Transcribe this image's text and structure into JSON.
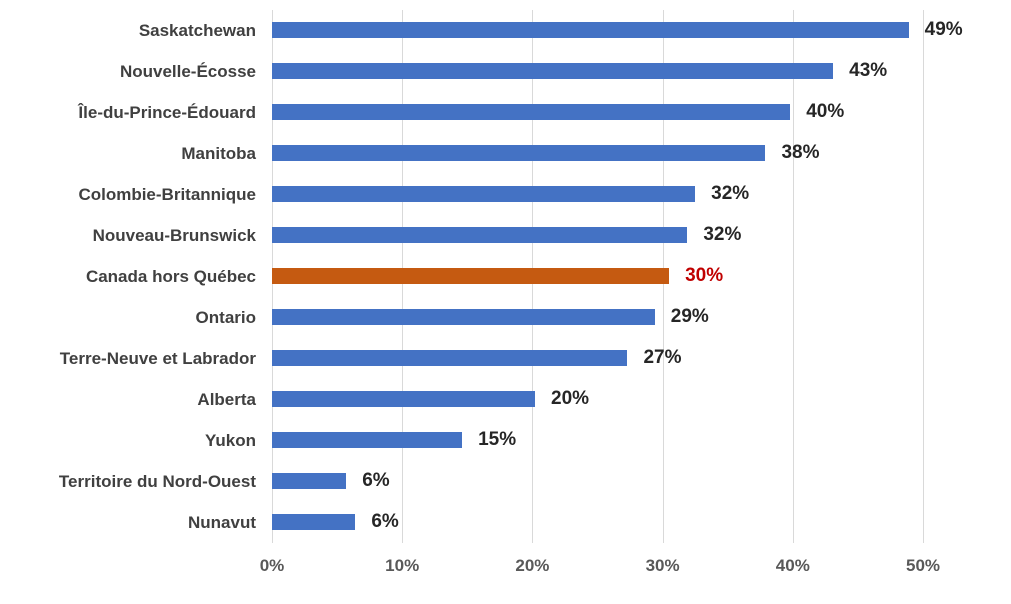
{
  "chart_data": {
    "type": "bar",
    "orientation": "horizontal",
    "title": "",
    "categories": [
      "Saskatchewan",
      "Nouvelle-Écosse",
      "Île-du-Prince-Édouard",
      "Manitoba",
      "Colombie-Britannique",
      "Nouveau-Brunswick",
      "Canada hors Québec",
      "Ontario",
      "Terre-Neuve et Labrador",
      "Alberta",
      "Yukon",
      "Territoire du Nord-Ouest",
      "Nunavut"
    ],
    "values": [
      49,
      43,
      40,
      38,
      32,
      32,
      30,
      29,
      27,
      20,
      15,
      6,
      6
    ],
    "data_labels": [
      "49%",
      "43%",
      "40%",
      "38%",
      "32%",
      "32%",
      "30%",
      "29%",
      "27%",
      "20%",
      "15%",
      "6%",
      "6%"
    ],
    "bar_lengths_pct": [
      48.9,
      43.1,
      39.8,
      37.9,
      32.5,
      31.9,
      30.5,
      29.4,
      27.3,
      20.2,
      14.6,
      5.7,
      6.4
    ],
    "highlight_index": 6,
    "x_axis": {
      "tick_labels": [
        "0%",
        "10%",
        "20%",
        "30%",
        "40%",
        "50%"
      ],
      "tick_values": [
        0,
        10,
        20,
        30,
        40,
        50
      ],
      "range": [
        0,
        55
      ]
    },
    "grid": true,
    "legend": false,
    "colors": {
      "bar_blue": "#4472C4",
      "bar_orange": "#C55A11",
      "data_label": "#262626",
      "highlight_data_label": "#C00000",
      "category_label": "#404040",
      "axis_label": "#595959",
      "gridline": "#D9D9D9"
    }
  }
}
